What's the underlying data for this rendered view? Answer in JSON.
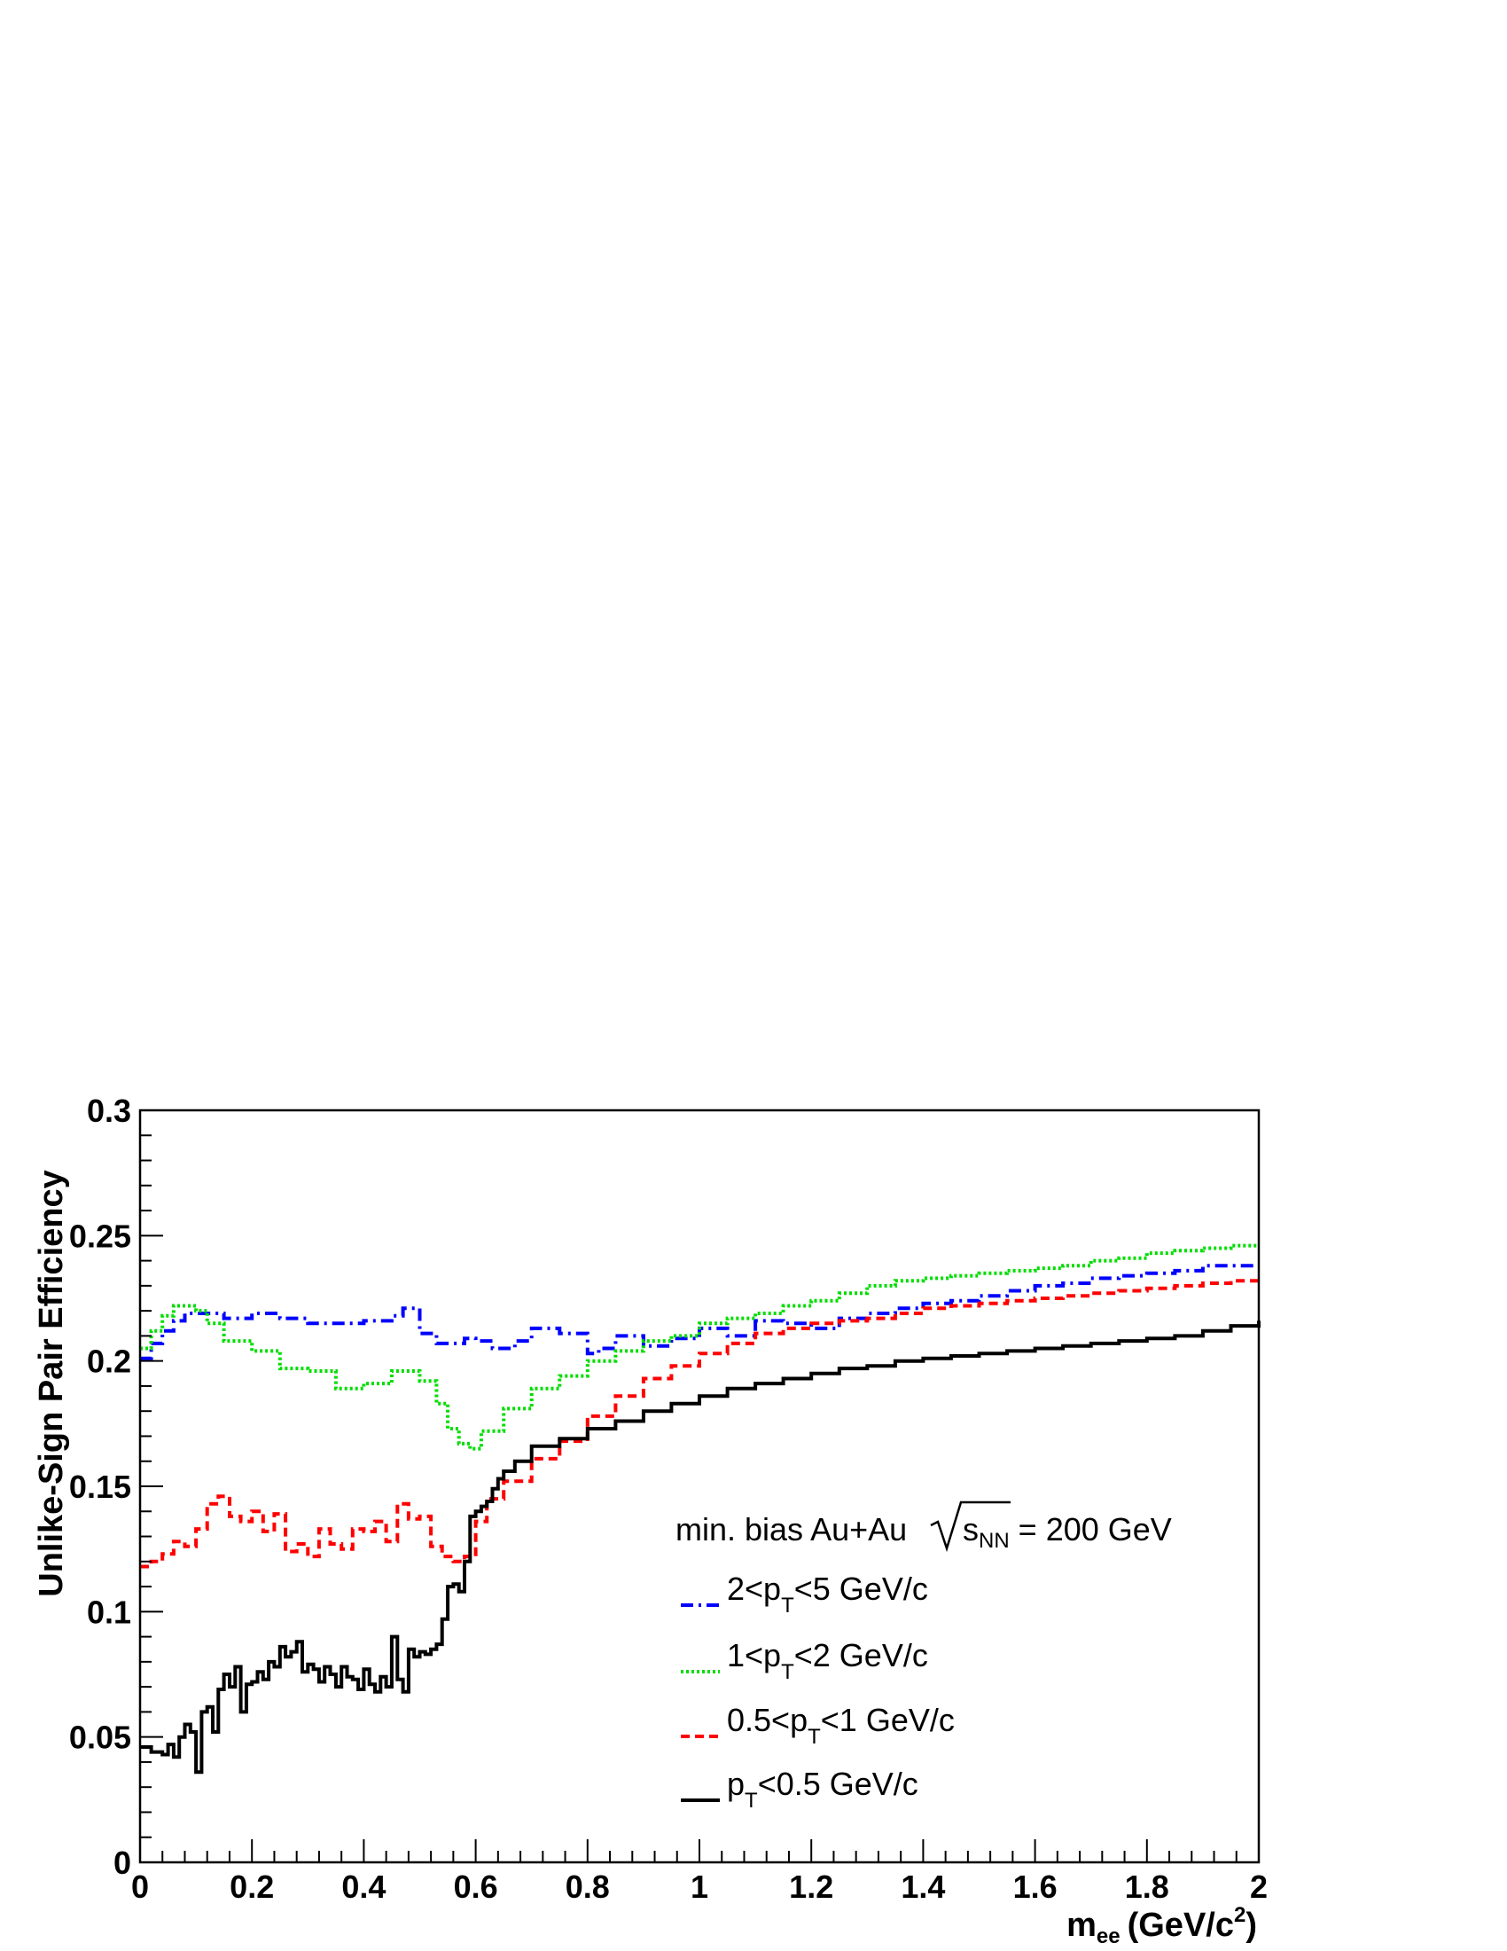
{
  "chart_data": {
    "type": "line",
    "xlabel": "m",
    "xlabel_sub": "ee",
    "xlabel_unit_pre": "(GeV/c",
    "xlabel_unit_sup": "2",
    "xlabel_unit_post": ")",
    "ylabel": "Unlike-Sign Pair Efficiency",
    "xlim": [
      0,
      2
    ],
    "ylim": [
      0,
      0.3
    ],
    "grid": false,
    "legend_position": "bottom-right",
    "x_tick_labels": [
      "0",
      "0.2",
      "0.4",
      "0.6",
      "0.8",
      "1",
      "1.2",
      "1.4",
      "1.6",
      "1.8",
      "2"
    ],
    "y_tick_labels": [
      "0",
      "0.05",
      "0.1",
      "0.15",
      "0.2",
      "0.25",
      "0.3"
    ],
    "legend_header": {
      "prefix": "min. bias Au+Au",
      "root_symbol": "s",
      "root_sub": "NN",
      "suffix": " = 200 GeV"
    },
    "series": [
      {
        "id": "pt2to5",
        "legend": {
          "pre": "2<p",
          "sub": "T",
          "post": "<5 GeV/c"
        },
        "color": "#0000ff",
        "dash": "14 6 3 6",
        "x": [
          0.0,
          0.02,
          0.04,
          0.06,
          0.08,
          0.1,
          0.15,
          0.2,
          0.25,
          0.3,
          0.35,
          0.4,
          0.45,
          0.47,
          0.5,
          0.53,
          0.58,
          0.6,
          0.63,
          0.67,
          0.7,
          0.75,
          0.8,
          0.82,
          0.85,
          0.9,
          0.95,
          1.0,
          1.05,
          1.1,
          1.15,
          1.2,
          1.25,
          1.3,
          1.35,
          1.4,
          1.45,
          1.5,
          1.55,
          1.6,
          1.65,
          1.7,
          1.75,
          1.8,
          1.85,
          1.9,
          1.95,
          2.0
        ],
        "y": [
          0.201,
          0.207,
          0.212,
          0.216,
          0.219,
          0.219,
          0.217,
          0.219,
          0.217,
          0.215,
          0.215,
          0.216,
          0.218,
          0.221,
          0.211,
          0.207,
          0.209,
          0.208,
          0.205,
          0.208,
          0.213,
          0.211,
          0.203,
          0.205,
          0.21,
          0.206,
          0.209,
          0.213,
          0.21,
          0.216,
          0.215,
          0.213,
          0.217,
          0.219,
          0.221,
          0.223,
          0.224,
          0.226,
          0.228,
          0.23,
          0.231,
          0.233,
          0.234,
          0.235,
          0.236,
          0.238,
          0.238,
          0.238
        ]
      },
      {
        "id": "pt1to2",
        "legend": {
          "pre": "1<p",
          "sub": "T",
          "post": "<2 GeV/c"
        },
        "color": "#00dd00",
        "dash": "3 3",
        "x": [
          0.0,
          0.02,
          0.04,
          0.06,
          0.08,
          0.1,
          0.12,
          0.15,
          0.2,
          0.25,
          0.3,
          0.35,
          0.4,
          0.45,
          0.5,
          0.53,
          0.55,
          0.57,
          0.59,
          0.61,
          0.65,
          0.7,
          0.75,
          0.8,
          0.85,
          0.9,
          0.95,
          1.0,
          1.05,
          1.1,
          1.15,
          1.2,
          1.25,
          1.3,
          1.35,
          1.4,
          1.45,
          1.5,
          1.55,
          1.6,
          1.65,
          1.7,
          1.75,
          1.8,
          1.85,
          1.9,
          1.95,
          2.0
        ],
        "y": [
          0.205,
          0.212,
          0.218,
          0.222,
          0.222,
          0.22,
          0.215,
          0.208,
          0.204,
          0.197,
          0.196,
          0.189,
          0.191,
          0.196,
          0.192,
          0.183,
          0.173,
          0.167,
          0.165,
          0.172,
          0.181,
          0.189,
          0.194,
          0.2,
          0.204,
          0.208,
          0.21,
          0.215,
          0.217,
          0.219,
          0.222,
          0.224,
          0.227,
          0.23,
          0.232,
          0.233,
          0.234,
          0.235,
          0.236,
          0.237,
          0.238,
          0.24,
          0.241,
          0.243,
          0.244,
          0.245,
          0.246,
          0.246
        ]
      },
      {
        "id": "pt05to1",
        "legend": {
          "pre": "0.5<p",
          "sub": "T",
          "post": "<1 GeV/c"
        },
        "color": "#ff0000",
        "dash": "10 6",
        "x": [
          0.0,
          0.02,
          0.04,
          0.06,
          0.08,
          0.1,
          0.12,
          0.14,
          0.16,
          0.18,
          0.2,
          0.22,
          0.24,
          0.26,
          0.28,
          0.3,
          0.32,
          0.34,
          0.36,
          0.38,
          0.4,
          0.42,
          0.44,
          0.46,
          0.48,
          0.5,
          0.52,
          0.54,
          0.56,
          0.58,
          0.6,
          0.62,
          0.65,
          0.7,
          0.75,
          0.8,
          0.85,
          0.9,
          0.95,
          1.0,
          1.05,
          1.1,
          1.15,
          1.2,
          1.25,
          1.3,
          1.35,
          1.4,
          1.45,
          1.5,
          1.55,
          1.6,
          1.65,
          1.7,
          1.75,
          1.8,
          1.85,
          1.9,
          1.95,
          2.0
        ],
        "y": [
          0.118,
          0.12,
          0.123,
          0.128,
          0.126,
          0.133,
          0.143,
          0.146,
          0.138,
          0.136,
          0.14,
          0.132,
          0.139,
          0.124,
          0.127,
          0.122,
          0.133,
          0.127,
          0.125,
          0.133,
          0.132,
          0.136,
          0.128,
          0.143,
          0.137,
          0.138,
          0.126,
          0.122,
          0.12,
          0.122,
          0.136,
          0.145,
          0.152,
          0.161,
          0.168,
          0.178,
          0.186,
          0.193,
          0.198,
          0.203,
          0.207,
          0.211,
          0.213,
          0.215,
          0.216,
          0.217,
          0.219,
          0.221,
          0.222,
          0.223,
          0.224,
          0.225,
          0.226,
          0.227,
          0.228,
          0.229,
          0.23,
          0.231,
          0.232,
          0.232
        ]
      },
      {
        "id": "ptlt05",
        "legend": {
          "pre": "p",
          "sub": "T",
          "post": "<0.5 GeV/c"
        },
        "color": "#000000",
        "dash": "",
        "x": [
          0.0,
          0.02,
          0.04,
          0.05,
          0.06,
          0.07,
          0.08,
          0.09,
          0.1,
          0.11,
          0.12,
          0.13,
          0.14,
          0.15,
          0.16,
          0.17,
          0.18,
          0.19,
          0.2,
          0.21,
          0.22,
          0.23,
          0.24,
          0.25,
          0.26,
          0.27,
          0.28,
          0.29,
          0.3,
          0.31,
          0.32,
          0.33,
          0.34,
          0.35,
          0.36,
          0.37,
          0.38,
          0.39,
          0.4,
          0.41,
          0.42,
          0.43,
          0.44,
          0.45,
          0.46,
          0.47,
          0.48,
          0.49,
          0.5,
          0.51,
          0.52,
          0.53,
          0.54,
          0.55,
          0.56,
          0.57,
          0.58,
          0.59,
          0.6,
          0.61,
          0.62,
          0.63,
          0.64,
          0.65,
          0.67,
          0.7,
          0.75,
          0.8,
          0.85,
          0.9,
          0.95,
          1.0,
          1.05,
          1.1,
          1.15,
          1.2,
          1.25,
          1.3,
          1.35,
          1.4,
          1.45,
          1.5,
          1.55,
          1.6,
          1.65,
          1.7,
          1.75,
          1.8,
          1.85,
          1.9,
          1.95,
          2.0
        ],
        "y": [
          0.046,
          0.044,
          0.043,
          0.047,
          0.042,
          0.05,
          0.055,
          0.052,
          0.036,
          0.06,
          0.062,
          0.052,
          0.069,
          0.075,
          0.07,
          0.078,
          0.06,
          0.071,
          0.072,
          0.076,
          0.073,
          0.08,
          0.078,
          0.086,
          0.082,
          0.084,
          0.088,
          0.076,
          0.079,
          0.077,
          0.072,
          0.078,
          0.075,
          0.07,
          0.078,
          0.074,
          0.073,
          0.069,
          0.077,
          0.071,
          0.068,
          0.074,
          0.07,
          0.09,
          0.073,
          0.068,
          0.085,
          0.082,
          0.084,
          0.083,
          0.085,
          0.087,
          0.097,
          0.11,
          0.111,
          0.108,
          0.12,
          0.138,
          0.14,
          0.142,
          0.144,
          0.149,
          0.153,
          0.156,
          0.16,
          0.166,
          0.169,
          0.173,
          0.176,
          0.18,
          0.183,
          0.186,
          0.189,
          0.191,
          0.193,
          0.195,
          0.197,
          0.198,
          0.2,
          0.201,
          0.202,
          0.203,
          0.204,
          0.205,
          0.206,
          0.207,
          0.208,
          0.209,
          0.21,
          0.212,
          0.214,
          0.216
        ]
      }
    ]
  }
}
